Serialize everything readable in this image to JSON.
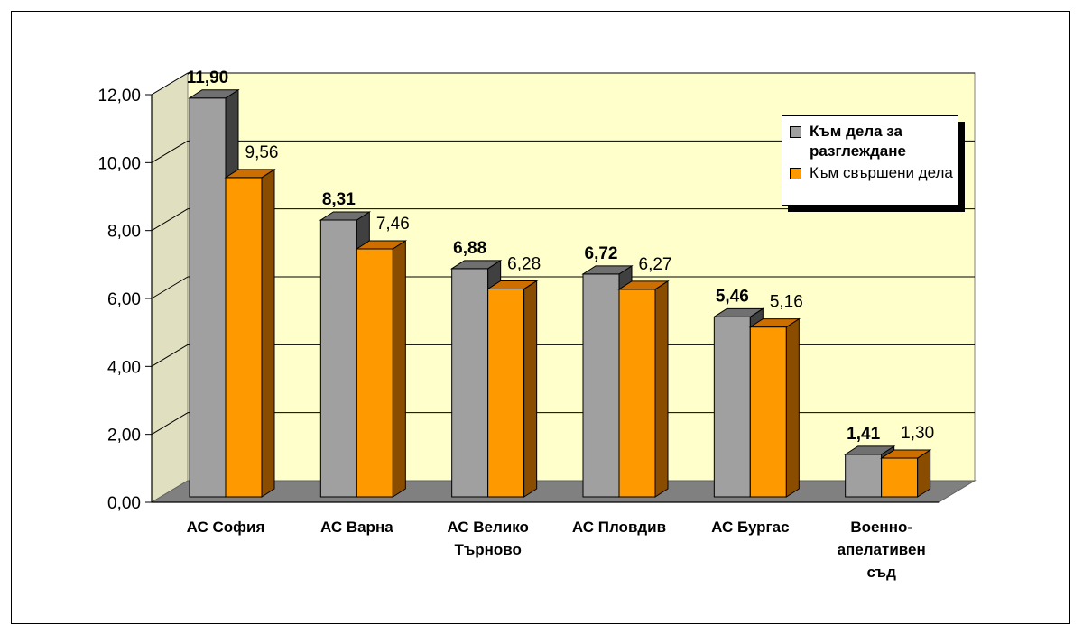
{
  "chart_data": {
    "type": "bar",
    "categories": [
      "АС София",
      "АС Варна",
      "АС Велико Търново",
      "АС Пловдив",
      "АС Бургас",
      "Военно-апелативен съд"
    ],
    "category_lines": [
      [
        "АС София"
      ],
      [
        "АС Варна"
      ],
      [
        "АС Велико",
        "Търново"
      ],
      [
        "АС Пловдив"
      ],
      [
        "АС Бургас"
      ],
      [
        "Военно-",
        "апелативен",
        "съд"
      ]
    ],
    "series": [
      {
        "name": "Към дела за разглеждане",
        "values": [
          11.9,
          8.31,
          6.88,
          6.72,
          5.46,
          1.41
        ],
        "labels": [
          "11,90",
          "8,31",
          "6,88",
          "6,72",
          "5,46",
          "1,41"
        ],
        "color": "#a0a0a0"
      },
      {
        "name": "Към свършени дела",
        "values": [
          9.56,
          7.46,
          6.28,
          6.27,
          5.16,
          1.3
        ],
        "labels": [
          "9,56",
          "7,46",
          "6,28",
          "6,27",
          "5,16",
          "1,30"
        ],
        "color": "#ff9900"
      }
    ],
    "y_ticks": [
      "0,00",
      "2,00",
      "4,00",
      "6,00",
      "8,00",
      "10,00",
      "12,00"
    ],
    "ylim": [
      0,
      12
    ],
    "grid": true,
    "three_d": true,
    "legend_position": "top-right",
    "plot_background": "#ffffcc"
  },
  "legend": {
    "item0": "Към дела за разглеждане",
    "item1": "Към свършени дела",
    "color0": "#a0a0a0",
    "color1": "#ff9900"
  }
}
